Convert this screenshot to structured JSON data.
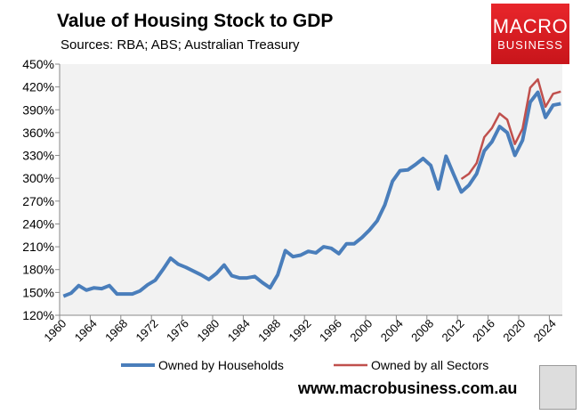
{
  "chart_data": {
    "type": "line",
    "title": "Value of Housing Stock to GDP",
    "subtitle": "Sources: RBA; ABS; Australian Treasury",
    "ylim": [
      120,
      450
    ],
    "yticks": [
      "120%",
      "150%",
      "180%",
      "210%",
      "240%",
      "270%",
      "300%",
      "330%",
      "360%",
      "390%",
      "420%",
      "450%"
    ],
    "xticks": [
      "1960",
      "1964",
      "1968",
      "1972",
      "1976",
      "1980",
      "1984",
      "1988",
      "1992",
      "1996",
      "2000",
      "2004",
      "2008",
      "2012",
      "2016",
      "2020",
      "2024"
    ],
    "x_start": 1960,
    "grid": false,
    "legend": "bottom",
    "series": [
      {
        "name": "Owned by Households",
        "color": "#4a7ebb",
        "start": 1960,
        "values": [
          145,
          149,
          159,
          153,
          156,
          155,
          159,
          148,
          148,
          148,
          152,
          160,
          166,
          180,
          195,
          187,
          183,
          178,
          173,
          167,
          175,
          186,
          172,
          169,
          169,
          171,
          163,
          156,
          173,
          205,
          197,
          199,
          204,
          202,
          210,
          208,
          201,
          214,
          214,
          222,
          232,
          244,
          265,
          296,
          310,
          311,
          318,
          326,
          317,
          286,
          329,
          305,
          282,
          291,
          306,
          336,
          348,
          368,
          360,
          330,
          350,
          400,
          413,
          380,
          396,
          398
        ]
      },
      {
        "name": "Owned by all Sectors",
        "color": "#c0504d",
        "start": 2012,
        "values": [
          299,
          306,
          320,
          354,
          366,
          385,
          377,
          345,
          365,
          419,
          430,
          394,
          411,
          414
        ]
      }
    ]
  },
  "logo": {
    "line1": "MACRO",
    "line2": "BUSINESS"
  },
  "footer": {
    "url": "www.macrobusiness.com.au"
  }
}
